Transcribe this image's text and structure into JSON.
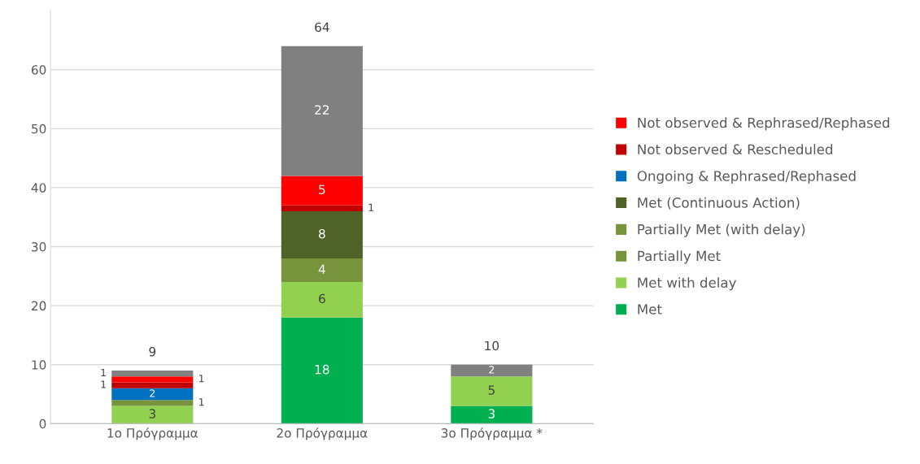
{
  "chart_data": {
    "type": "bar",
    "stacked": true,
    "categories": [
      "1ο Πρόγραμμα",
      "2ο Πρόγραμμα",
      "3ο Πρόγραμμα *"
    ],
    "series": [
      {
        "name": "Met",
        "color": "#00b050",
        "values": [
          null,
          18,
          3
        ]
      },
      {
        "name": "Met with delay",
        "color": "#92d050",
        "values": [
          3,
          6,
          5
        ]
      },
      {
        "name": "Partially Met",
        "color": "#77933c",
        "values": [
          1,
          null,
          null
        ]
      },
      {
        "name": "Partially Met (with delay)",
        "color": "#77933c",
        "values": [
          null,
          4,
          null
        ]
      },
      {
        "name": "Met (Continuous Action)",
        "color": "#4f6228",
        "values": [
          null,
          8,
          null
        ]
      },
      {
        "name": "Ongoing & Rephrased/Rephased",
        "color": "#0070c0",
        "values": [
          2,
          null,
          null
        ]
      },
      {
        "name": "Not observed & Rescheduled",
        "color": "#c00000",
        "values": [
          1,
          1,
          null
        ]
      },
      {
        "name": "Not observed & Rephrased/Rephased",
        "color": "#ff0000",
        "values": [
          1,
          5,
          null
        ]
      },
      {
        "color": "#808080",
        "values": [
          1,
          22,
          2
        ]
      }
    ],
    "totals": [
      "9",
      "64",
      "10"
    ],
    "data_labels": true,
    "ylim": [
      0,
      70
    ],
    "yticks": [
      0,
      10,
      20,
      30,
      40,
      50,
      60
    ],
    "grid": "y",
    "legend": "right"
  }
}
